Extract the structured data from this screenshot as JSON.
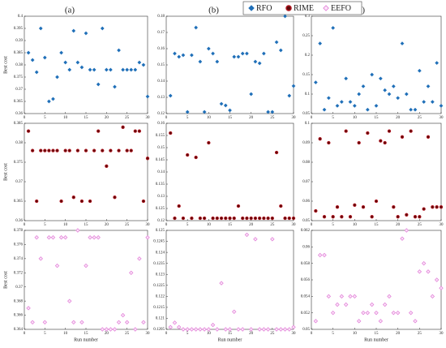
{
  "chart_data": [
    {
      "type": "scatter",
      "title": "(a)",
      "ylabel": "Best cost",
      "x": [
        1,
        2,
        3,
        4,
        5,
        6,
        7,
        8,
        9,
        10,
        11,
        12,
        13,
        14,
        15,
        16,
        17,
        18,
        19,
        20,
        21,
        22,
        23,
        24,
        25,
        26,
        27,
        28,
        29,
        30
      ],
      "xlim": [
        0,
        30
      ],
      "xticks": [
        0,
        5,
        10,
        15,
        20,
        25,
        30
      ],
      "ylim": [
        0.36,
        0.4
      ],
      "yticks": [
        0.36,
        0.365,
        0.37,
        0.375,
        0.38,
        0.385,
        0.39,
        0.395,
        0.4
      ],
      "series": [
        {
          "name": "RFO",
          "color": "#1f6fb8",
          "marker": "diamond",
          "values": [
            0.385,
            0.382,
            0.377,
            0.395,
            0.383,
            0.365,
            0.366,
            0.375,
            0.385,
            0.381,
            0.378,
            0.394,
            0.381,
            0.379,
            0.393,
            0.378,
            0.378,
            0.372,
            0.395,
            0.378,
            0.378,
            0.371,
            0.386,
            0.378,
            0.378,
            0.378,
            0.378,
            0.381,
            0.38,
            0.367
          ]
        }
      ]
    },
    {
      "type": "scatter",
      "title": "(b)",
      "x": [
        1,
        2,
        3,
        4,
        5,
        6,
        7,
        8,
        9,
        10,
        11,
        12,
        13,
        14,
        15,
        16,
        17,
        18,
        19,
        20,
        21,
        22,
        23,
        24,
        25,
        26,
        27,
        28,
        29,
        30
      ],
      "xlim": [
        0,
        30
      ],
      "xticks": [
        0,
        5,
        10,
        15,
        20,
        25,
        30
      ],
      "ylim": [
        0.12,
        0.18
      ],
      "yticks": [
        0.12,
        0.13,
        0.14,
        0.15,
        0.16,
        0.17,
        0.18
      ],
      "series": [
        {
          "name": "RFO",
          "color": "#1f6fb8",
          "marker": "diamond",
          "values": [
            0.131,
            0.157,
            0.155,
            0.156,
            0.121,
            0.156,
            0.173,
            0.152,
            0.121,
            0.16,
            0.157,
            0.152,
            0.126,
            0.125,
            0.122,
            0.155,
            0.155,
            0.157,
            0.157,
            0.132,
            0.152,
            0.151,
            0.157,
            0.121,
            0.121,
            0.164,
            0.159,
            0.18,
            0.131,
            0.137
          ]
        }
      ]
    },
    {
      "type": "scatter",
      "title": "(c)",
      "x": [
        1,
        2,
        3,
        4,
        5,
        6,
        7,
        8,
        9,
        10,
        11,
        12,
        13,
        14,
        15,
        16,
        17,
        18,
        19,
        20,
        21,
        22,
        23,
        24,
        25,
        26,
        27,
        28,
        29,
        30
      ],
      "xlim": [
        0,
        30
      ],
      "xticks": [
        0,
        5,
        10,
        15,
        20,
        25,
        30
      ],
      "ylim": [
        0.05,
        0.3
      ],
      "yticks": [
        0.05,
        0.1,
        0.15,
        0.2,
        0.25,
        0.3
      ],
      "series": [
        {
          "name": "RFO",
          "color": "#1f6fb8",
          "marker": "diamond",
          "values": [
            0.13,
            0.23,
            0.06,
            0.09,
            0.27,
            0.07,
            0.08,
            0.14,
            0.08,
            0.07,
            0.1,
            0.12,
            0.06,
            0.15,
            0.07,
            0.14,
            0.11,
            0.1,
            0.12,
            0.09,
            0.23,
            0.1,
            0.06,
            0.06,
            0.16,
            0.08,
            0.12,
            0.08,
            0.18,
            0.07
          ]
        }
      ]
    },
    {
      "type": "scatter",
      "ylabel": "Best cost",
      "x": [
        1,
        2,
        3,
        4,
        5,
        6,
        7,
        8,
        9,
        10,
        11,
        12,
        13,
        14,
        15,
        16,
        17,
        18,
        19,
        20,
        21,
        22,
        23,
        24,
        25,
        26,
        27,
        28,
        29,
        30
      ],
      "xlim": [
        0,
        30
      ],
      "xticks": [
        0,
        5,
        10,
        15,
        20,
        25,
        30
      ],
      "ylim": [
        0.36,
        0.385
      ],
      "yticks": [
        0.36,
        0.365,
        0.37,
        0.375,
        0.38,
        0.385
      ],
      "series": [
        {
          "name": "RIME",
          "color": "#b0141e",
          "marker": "circle",
          "values": [
            0.383,
            0.378,
            0.365,
            0.378,
            0.378,
            0.378,
            0.378,
            0.378,
            0.365,
            0.378,
            0.378,
            0.366,
            0.378,
            0.365,
            0.378,
            0.365,
            0.378,
            0.383,
            0.378,
            0.374,
            0.378,
            0.366,
            0.378,
            0.384,
            0.378,
            0.378,
            0.383,
            0.383,
            0.365,
            0.376
          ]
        }
      ]
    },
    {
      "type": "scatter",
      "x": [
        1,
        2,
        3,
        4,
        5,
        6,
        7,
        8,
        9,
        10,
        11,
        12,
        13,
        14,
        15,
        16,
        17,
        18,
        19,
        20,
        21,
        22,
        23,
        24,
        25,
        26,
        27,
        28,
        29,
        30
      ],
      "xlim": [
        0,
        30
      ],
      "xticks": [
        0,
        5,
        10,
        15,
        20,
        25,
        30
      ],
      "ylim": [
        0.12,
        0.16
      ],
      "yticks": [
        0.12,
        0.125,
        0.13,
        0.135,
        0.14,
        0.145,
        0.15,
        0.155,
        0.16
      ],
      "series": [
        {
          "name": "RIME",
          "color": "#b0141e",
          "marker": "circle",
          "values": [
            0.156,
            0.121,
            0.126,
            0.121,
            0.147,
            0.121,
            0.146,
            0.121,
            0.121,
            0.152,
            0.121,
            0.121,
            0.121,
            0.121,
            0.121,
            0.121,
            0.126,
            0.121,
            0.121,
            0.121,
            0.121,
            0.121,
            0.121,
            0.121,
            0.121,
            0.148,
            0.126,
            0.121,
            0.121,
            0.121
          ]
        }
      ]
    },
    {
      "type": "scatter",
      "x": [
        1,
        2,
        3,
        4,
        5,
        6,
        7,
        8,
        9,
        10,
        11,
        12,
        13,
        14,
        15,
        16,
        17,
        18,
        19,
        20,
        21,
        22,
        23,
        24,
        25,
        26,
        27,
        28,
        29,
        30
      ],
      "xlim": [
        0,
        30
      ],
      "xticks": [
        0,
        5,
        10,
        15,
        20,
        25,
        30
      ],
      "ylim": [
        0.05,
        0.1
      ],
      "yticks": [
        0.05,
        0.06,
        0.07,
        0.08,
        0.09,
        0.1
      ],
      "series": [
        {
          "name": "RIME",
          "color": "#b0141e",
          "marker": "circle",
          "values": [
            0.055,
            0.092,
            0.052,
            0.09,
            0.052,
            0.057,
            0.052,
            0.096,
            0.052,
            0.058,
            0.09,
            0.057,
            0.095,
            0.052,
            0.06,
            0.091,
            0.09,
            0.096,
            0.057,
            0.052,
            0.093,
            0.053,
            0.096,
            0.052,
            0.052,
            0.056,
            0.093,
            0.057,
            0.057,
            0.057
          ]
        }
      ]
    },
    {
      "type": "scatter",
      "ylabel": "Best cost",
      "xlabel": "Run number",
      "x": [
        1,
        2,
        3,
        4,
        5,
        6,
        7,
        8,
        9,
        10,
        11,
        12,
        13,
        14,
        15,
        16,
        17,
        18,
        19,
        20,
        21,
        22,
        23,
        24,
        25,
        26,
        27,
        28,
        29,
        30
      ],
      "xlim": [
        0,
        30
      ],
      "xticks": [
        0,
        5,
        10,
        15,
        20,
        25,
        30
      ],
      "ylim": [
        0.364,
        0.378
      ],
      "yticks": [
        0.364,
        0.366,
        0.368,
        0.37,
        0.372,
        0.374,
        0.376,
        0.378
      ],
      "series": [
        {
          "name": "EEFO",
          "color": "#e07ad6",
          "marker": "diamond-open",
          "values": [
            0.367,
            0.365,
            0.377,
            0.374,
            0.365,
            0.377,
            0.377,
            0.373,
            0.377,
            0.377,
            0.368,
            0.365,
            0.378,
            0.365,
            0.373,
            0.377,
            0.377,
            0.377,
            0.364,
            0.364,
            0.364,
            0.364,
            0.365,
            0.366,
            0.365,
            0.372,
            0.364,
            0.374,
            0.365,
            0.377
          ]
        }
      ]
    },
    {
      "type": "scatter",
      "xlabel": "Run number",
      "x": [
        1,
        2,
        3,
        4,
        5,
        6,
        7,
        8,
        9,
        10,
        11,
        12,
        13,
        14,
        15,
        16,
        17,
        18,
        19,
        20,
        21,
        22,
        23,
        24,
        25,
        26,
        27,
        28,
        29,
        30
      ],
      "xlim": [
        0,
        30
      ],
      "xticks": [
        0,
        5,
        10,
        15,
        20,
        25,
        30
      ],
      "ylim": [
        0.1205,
        0.125
      ],
      "yticks": [
        0.1205,
        0.121,
        0.1215,
        0.122,
        0.1225,
        0.123,
        0.1235,
        0.124,
        0.1245,
        0.125
      ],
      "series": [
        {
          "name": "EEFO",
          "color": "#e07ad6",
          "marker": "diamond-open",
          "values": [
            0.1206,
            0.1208,
            0.1206,
            0.1205,
            0.1205,
            0.1205,
            0.1205,
            0.1205,
            0.1205,
            0.1205,
            0.1207,
            0.1205,
            0.1226,
            0.1205,
            0.1205,
            0.1213,
            0.1205,
            0.1205,
            0.1248,
            0.1205,
            0.1246,
            0.1205,
            0.1205,
            0.1205,
            0.1246,
            0.1205,
            0.1205,
            0.1205,
            0.1205,
            0.1206
          ]
        }
      ]
    },
    {
      "type": "scatter",
      "xlabel": "Run number",
      "x": [
        1,
        2,
        3,
        4,
        5,
        6,
        7,
        8,
        9,
        10,
        11,
        12,
        13,
        14,
        15,
        16,
        17,
        18,
        19,
        20,
        21,
        22,
        23,
        24,
        25,
        26,
        27,
        28,
        29,
        30
      ],
      "xlim": [
        0,
        30
      ],
      "xticks": [
        0,
        5,
        10,
        15,
        20,
        25,
        30
      ],
      "ylim": [
        0.05,
        0.062
      ],
      "yticks": [
        0.05,
        0.052,
        0.054,
        0.056,
        0.058,
        0.06,
        0.062
      ],
      "series": [
        {
          "name": "EEFO",
          "color": "#e07ad6",
          "marker": "diamond-open",
          "values": [
            0.051,
            0.059,
            0.059,
            0.054,
            0.052,
            0.053,
            0.054,
            0.053,
            0.054,
            0.054,
            0.051,
            0.052,
            0.052,
            0.053,
            0.052,
            0.051,
            0.053,
            0.054,
            0.052,
            0.052,
            0.061,
            0.062,
            0.052,
            0.051,
            0.057,
            0.058,
            0.057,
            0.054,
            0.056,
            0.055
          ]
        }
      ]
    }
  ]
}
